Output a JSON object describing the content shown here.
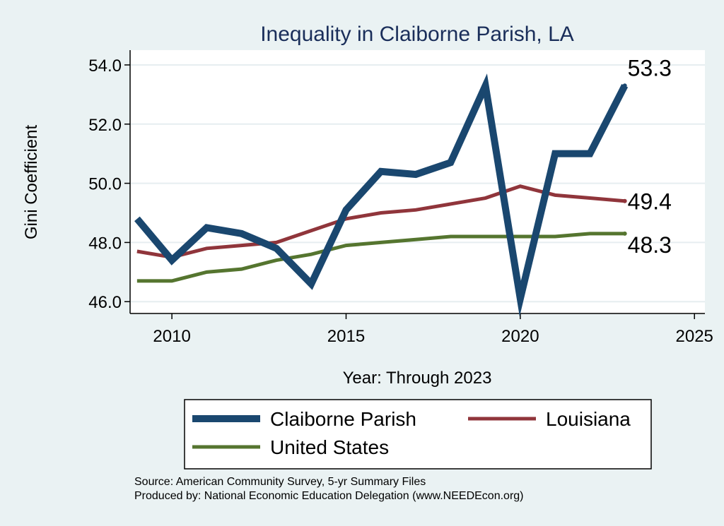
{
  "chart_data": {
    "type": "line",
    "title": "Inequality in Claiborne Parish, LA",
    "xlabel": "Year: Through 2023",
    "ylabel": "Gini Coefficient",
    "xlim": [
      2008.8,
      2025.3
    ],
    "ylim": [
      45.6,
      54.5
    ],
    "xticks": [
      2010,
      2015,
      2020,
      2025
    ],
    "yticks": [
      46.0,
      48.0,
      50.0,
      52.0,
      54.0
    ],
    "ytick_labels": [
      "46.0",
      "48.0",
      "50.0",
      "52.0",
      "54.0"
    ],
    "grid": true,
    "legend_placement": "bottom",
    "x": [
      2009,
      2010,
      2011,
      2012,
      2013,
      2014,
      2015,
      2016,
      2017,
      2018,
      2019,
      2020,
      2021,
      2022,
      2023
    ],
    "series": [
      {
        "name": "Claiborne Parish",
        "color": "#1a476f",
        "values": [
          48.8,
          47.4,
          48.5,
          48.3,
          47.8,
          46.6,
          49.1,
          50.4,
          50.3,
          50.7,
          53.3,
          46.1,
          51.0,
          51.0,
          53.3
        ],
        "end_label": "53.3"
      },
      {
        "name": "Louisiana",
        "color": "#90353b",
        "values": [
          47.7,
          47.5,
          47.8,
          47.9,
          48.0,
          48.4,
          48.8,
          49.0,
          49.1,
          49.3,
          49.5,
          49.9,
          49.6,
          49.5,
          49.4
        ],
        "end_label": "49.4"
      },
      {
        "name": "United States",
        "color": "#55752f",
        "values": [
          46.7,
          46.7,
          47.0,
          47.1,
          47.4,
          47.6,
          47.9,
          48.0,
          48.1,
          48.2,
          48.2,
          48.2,
          48.2,
          48.3,
          48.3
        ],
        "end_label": "48.3"
      }
    ],
    "source_note": "Source: American Community Survey, 5-yr Summary Files",
    "producer_note": "Produced by: National Economic Education Delegation (www.NEEDEcon.org)"
  }
}
